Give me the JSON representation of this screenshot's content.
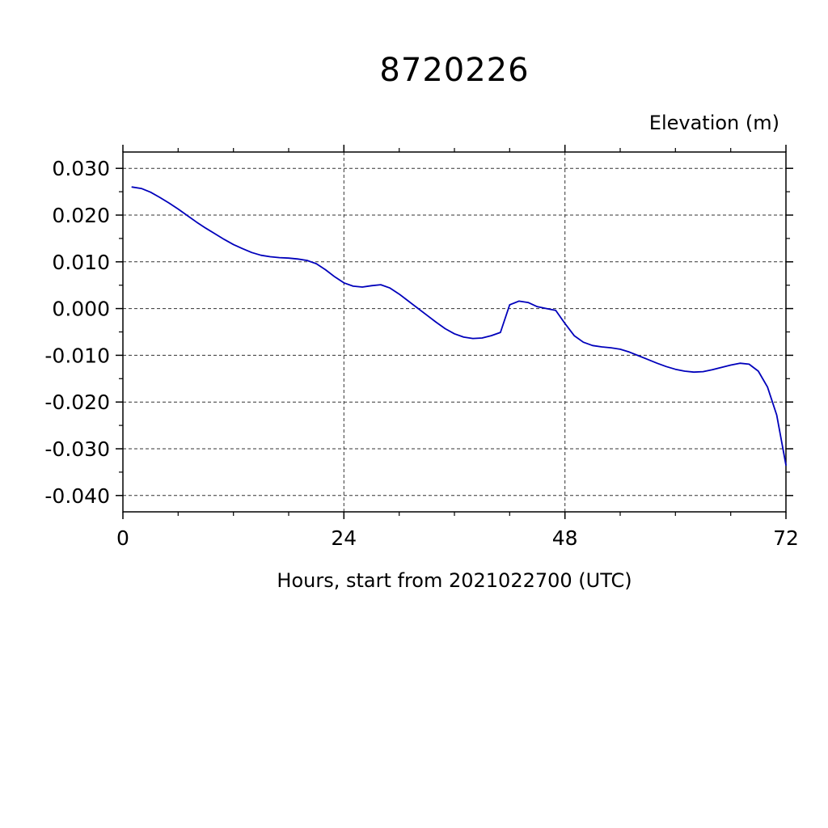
{
  "chart_data": {
    "type": "line",
    "title": "8720226",
    "ylabel": "Elevation (m)",
    "xlabel": "Hours, start from 2021022700 (UTC)",
    "xlim": [
      0,
      72
    ],
    "xticks": [
      0,
      24,
      48,
      72
    ],
    "x_minor_step": 6,
    "yticks": [
      0.03,
      0.02,
      0.01,
      0.0,
      -0.01,
      -0.02,
      -0.03,
      -0.04
    ],
    "y_minor_step": 0.005,
    "ylim_box": [
      -0.0435,
      0.0335
    ],
    "grid": true,
    "grid_style": "dashed",
    "line_color": "#0000bb",
    "axis_color": "#000000",
    "legend": "none",
    "series": [
      {
        "name": "elevation",
        "x": [
          1,
          2,
          3,
          4,
          5,
          6,
          7,
          8,
          9,
          10,
          11,
          12,
          13,
          14,
          15,
          16,
          17,
          18,
          19,
          20,
          21,
          22,
          23,
          24,
          25,
          26,
          27,
          28,
          29,
          30,
          31,
          32,
          33,
          34,
          35,
          36,
          37,
          38,
          39,
          40,
          41,
          42,
          43,
          44,
          45,
          46,
          47,
          48,
          49,
          50,
          51,
          52,
          53,
          54,
          55,
          56,
          57,
          58,
          59,
          60,
          61,
          62,
          63,
          64,
          65,
          66,
          67,
          68,
          69,
          70,
          71,
          72
        ],
        "y": [
          0.026,
          0.0257,
          0.0249,
          0.0238,
          0.0226,
          0.0213,
          0.0199,
          0.0185,
          0.0172,
          0.016,
          0.0148,
          0.0137,
          0.0128,
          0.012,
          0.0114,
          0.0111,
          0.0109,
          0.0108,
          0.0106,
          0.0103,
          0.0096,
          0.0083,
          0.0068,
          0.0055,
          0.0048,
          0.0046,
          0.0049,
          0.0051,
          0.0044,
          0.0031,
          0.0016,
          0.0001,
          -0.0014,
          -0.0029,
          -0.0043,
          -0.0054,
          -0.0061,
          -0.0064,
          -0.0063,
          -0.0058,
          -0.0051,
          0.0008,
          0.0016,
          0.0013,
          0.0004,
          0.0,
          -0.0004,
          -0.0032,
          -0.0058,
          -0.0072,
          -0.0079,
          -0.0082,
          -0.0084,
          -0.0087,
          -0.0093,
          -0.0101,
          -0.0109,
          -0.0117,
          -0.0124,
          -0.013,
          -0.0134,
          -0.0136,
          -0.0135,
          -0.0131,
          -0.0126,
          -0.0121,
          -0.0117,
          -0.0119,
          -0.0134,
          -0.0168,
          -0.0228,
          -0.0335
        ]
      }
    ]
  }
}
